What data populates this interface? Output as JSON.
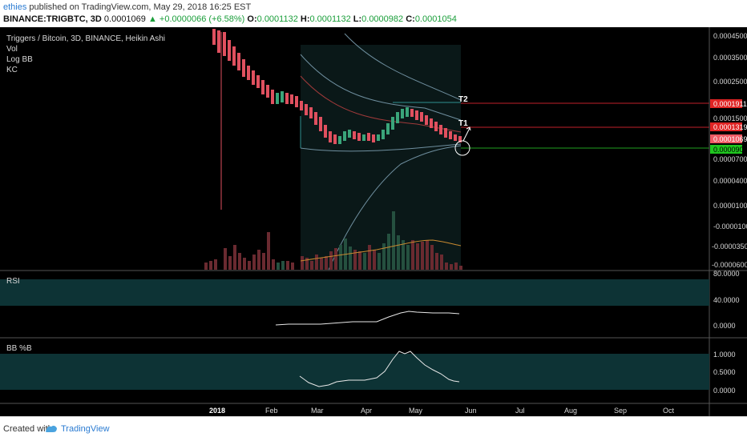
{
  "header": {
    "user": "ethies",
    "published_text": "published on TradingView.com, May 29, 2018 16:25 EST",
    "symbol": "BINANCE:TRIGBTC, 3D",
    "price": "0.0001069",
    "change": "▲ +0.0000066 (+6.58%)",
    "o_label": "O:",
    "o_value": "0.0001132",
    "h_label": "H:",
    "h_value": "0.0001132",
    "l_label": "L:",
    "l_value": "0.0000982",
    "c_label": "C:",
    "c_value": "0.0001054"
  },
  "legend": {
    "title": "Triggers / Bitcoin, 3D, BINANCE, Heikin Ashi",
    "items": [
      "Vol",
      "Log BB",
      "KC"
    ]
  },
  "annotations": {
    "t2": "T2",
    "t1": "T1"
  },
  "price_axis": {
    "ticks": [
      "0.0004500",
      "0.0003500",
      "0.0002500",
      "0.0001500",
      "0.0000700",
      "0.0000400",
      "0.0000100",
      "-0.0000100",
      "-0.0000350",
      "-0.0000600"
    ],
    "tags": [
      {
        "label": "0.0001911",
        "color": "#e02424"
      },
      {
        "label": "0.0001319",
        "color": "#e02424"
      },
      {
        "label": "0.0001069",
        "color": "#f05a63"
      },
      {
        "label": "0.0000903",
        "color": "#1fc71f"
      }
    ]
  },
  "rsi_panel": {
    "label": "RSI",
    "ticks": [
      "80.0000",
      "40.0000",
      "0.0000"
    ]
  },
  "bb_panel": {
    "label": "BB %B",
    "ticks": [
      "1.0000",
      "0.5000",
      "0.0000"
    ]
  },
  "time_axis": [
    "2018",
    "Feb",
    "Mar",
    "Apr",
    "May",
    "Jun",
    "Jul",
    "Aug",
    "Sep",
    "Oct"
  ],
  "footer": {
    "created_with": "Created with",
    "brand": "TradingView"
  },
  "colors": {
    "up": "#3aa57a",
    "down": "#e0505f",
    "background": "#000000",
    "band": "#0f3a3a"
  }
}
